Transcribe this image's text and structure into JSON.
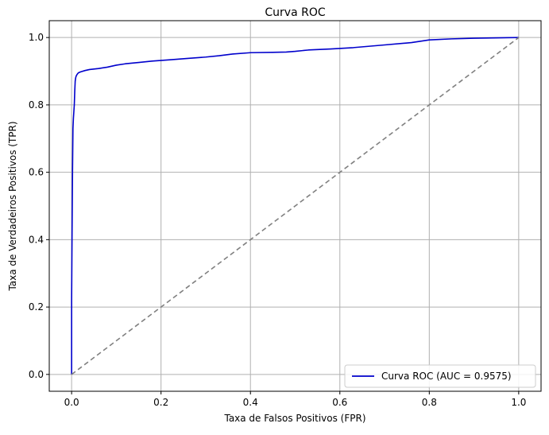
{
  "chart_data": {
    "type": "line",
    "title": "Curva ROC",
    "xlabel": "Taxa de Falsos Positivos (FPR)",
    "ylabel": "Taxa de Verdadeiros Positivos (TPR)",
    "xlim": [
      -0.05,
      1.05
    ],
    "ylim": [
      -0.05,
      1.05
    ],
    "xticks": [
      0.0,
      0.2,
      0.4,
      0.6,
      0.8,
      1.0
    ],
    "yticks": [
      0.0,
      0.2,
      0.4,
      0.6,
      0.8,
      1.0
    ],
    "xtick_labels": [
      "0.0",
      "0.2",
      "0.4",
      "0.6",
      "0.8",
      "1.0"
    ],
    "ytick_labels": [
      "0.0",
      "0.2",
      "0.4",
      "0.6",
      "0.8",
      "1.0"
    ],
    "grid": true,
    "legend_position": "lower-right",
    "series": [
      {
        "name": "Curva ROC (AUC = 0.9575)",
        "color": "#0000cc",
        "style": "solid",
        "x": [
          0.0,
          0.0,
          0.001,
          0.002,
          0.003,
          0.004,
          0.005,
          0.006,
          0.007,
          0.008,
          0.009,
          0.01,
          0.012,
          0.015,
          0.02,
          0.03,
          0.04,
          0.06,
          0.08,
          0.1,
          0.12,
          0.15,
          0.18,
          0.22,
          0.26,
          0.3,
          0.33,
          0.36,
          0.4,
          0.45,
          0.48,
          0.5,
          0.53,
          0.58,
          0.63,
          0.7,
          0.76,
          0.8,
          0.85,
          0.9,
          1.0
        ],
        "y": [
          0.0,
          0.22,
          0.42,
          0.6,
          0.73,
          0.76,
          0.78,
          0.8,
          0.84,
          0.87,
          0.88,
          0.885,
          0.89,
          0.895,
          0.898,
          0.902,
          0.905,
          0.908,
          0.912,
          0.918,
          0.922,
          0.926,
          0.93,
          0.934,
          0.938,
          0.942,
          0.946,
          0.951,
          0.955,
          0.956,
          0.957,
          0.959,
          0.963,
          0.966,
          0.97,
          0.978,
          0.985,
          0.993,
          0.996,
          0.998,
          1.0
        ]
      },
      {
        "name": "",
        "color": "#808080",
        "style": "dashed",
        "x": [
          0.0,
          1.0
        ],
        "y": [
          0.0,
          1.0
        ]
      }
    ]
  }
}
